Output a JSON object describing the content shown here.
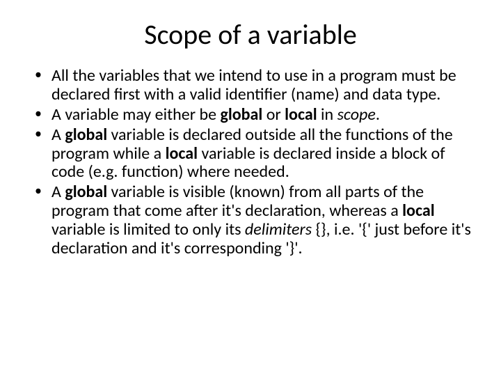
{
  "slide": {
    "title": "Scope of a variable",
    "bullets": [
      {
        "runs": [
          {
            "t": "All the variables that we intend to use in a program must be declared first with a valid identifier (name) and data type."
          }
        ]
      },
      {
        "runs": [
          {
            "t": "A variable may either be "
          },
          {
            "t": "global",
            "style": "b"
          },
          {
            "t": " or "
          },
          {
            "t": "local",
            "style": "b"
          },
          {
            "t": " in "
          },
          {
            "t": "scope",
            "style": "i"
          },
          {
            "t": "."
          }
        ]
      },
      {
        "runs": [
          {
            "t": "A "
          },
          {
            "t": "global",
            "style": "b"
          },
          {
            "t": " variable is declared outside all the functions of the program while a "
          },
          {
            "t": "local",
            "style": "b"
          },
          {
            "t": " variable is declared inside a block of code (e.g. function) where needed."
          }
        ]
      },
      {
        "runs": [
          {
            "t": "A "
          },
          {
            "t": "global",
            "style": "b"
          },
          {
            "t": " variable is visible (known) from all parts of the program that come after it's declaration, whereas a "
          },
          {
            "t": "local",
            "style": "b"
          },
          {
            "t": " variable is limited to only its "
          },
          {
            "t": "delimiters",
            "style": "i"
          },
          {
            "t": " {}, i.e. '{' just before it's declaration and it's corresponding '}'."
          }
        ]
      }
    ]
  },
  "style": {
    "background_color": "#ffffff",
    "text_color": "#000000",
    "title_fontsize": 40,
    "body_fontsize": 24,
    "font_family": "Calibri"
  }
}
